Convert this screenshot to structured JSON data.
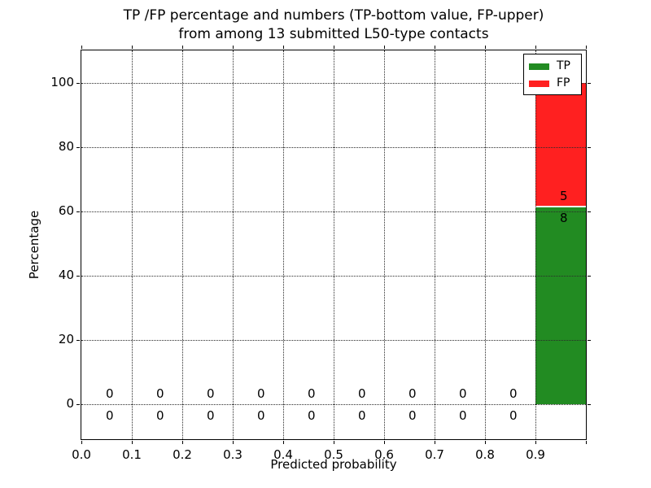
{
  "chart_data": {
    "type": "bar",
    "stacked": true,
    "title": "TP /FP percentage and numbers (TP-bottom value, FP-upper)\nfrom among 13 submitted L50-type contacts",
    "title_line1": "TP /FP percentage and numbers (TP-bottom value, FP-upper)",
    "title_line2": "from among 13 submitted L50-type contacts",
    "xlabel": "Predicted probability",
    "ylabel": "Percentage",
    "xlim": [
      0.0,
      1.0
    ],
    "ylim": [
      -11,
      110
    ],
    "xticks": [
      0.0,
      0.1,
      0.2,
      0.3,
      0.4,
      0.5,
      0.6,
      0.7,
      0.8,
      0.9
    ],
    "xtick_labels": [
      "0.0",
      "0.1",
      "0.2",
      "0.3",
      "0.4",
      "0.5",
      "0.6",
      "0.7",
      "0.8",
      "0.9"
    ],
    "yticks": [
      0,
      20,
      40,
      60,
      80,
      100
    ],
    "ytick_labels": [
      "0",
      "20",
      "40",
      "60",
      "80",
      "100"
    ],
    "grid": true,
    "grid_style": "dotted",
    "total_contacts": 13,
    "bin_edges": [
      0.0,
      0.1,
      0.2,
      0.3,
      0.4,
      0.5,
      0.6,
      0.7,
      0.8,
      0.9,
      1.0
    ],
    "series": [
      {
        "name": "TP",
        "color": "#228B22",
        "counts": [
          0,
          0,
          0,
          0,
          0,
          0,
          0,
          0,
          0,
          8
        ],
        "percentages": [
          0,
          0,
          0,
          0,
          0,
          0,
          0,
          0,
          0,
          61.5
        ]
      },
      {
        "name": "FP",
        "color": "#FF2020",
        "counts": [
          0,
          0,
          0,
          0,
          0,
          0,
          0,
          0,
          0,
          5
        ],
        "percentages": [
          0,
          0,
          0,
          0,
          0,
          0,
          0,
          0,
          0,
          38.5
        ]
      }
    ],
    "legend": {
      "position": "upper right"
    }
  },
  "colors": {
    "background": "#FFFFFF",
    "text": "#000000"
  }
}
